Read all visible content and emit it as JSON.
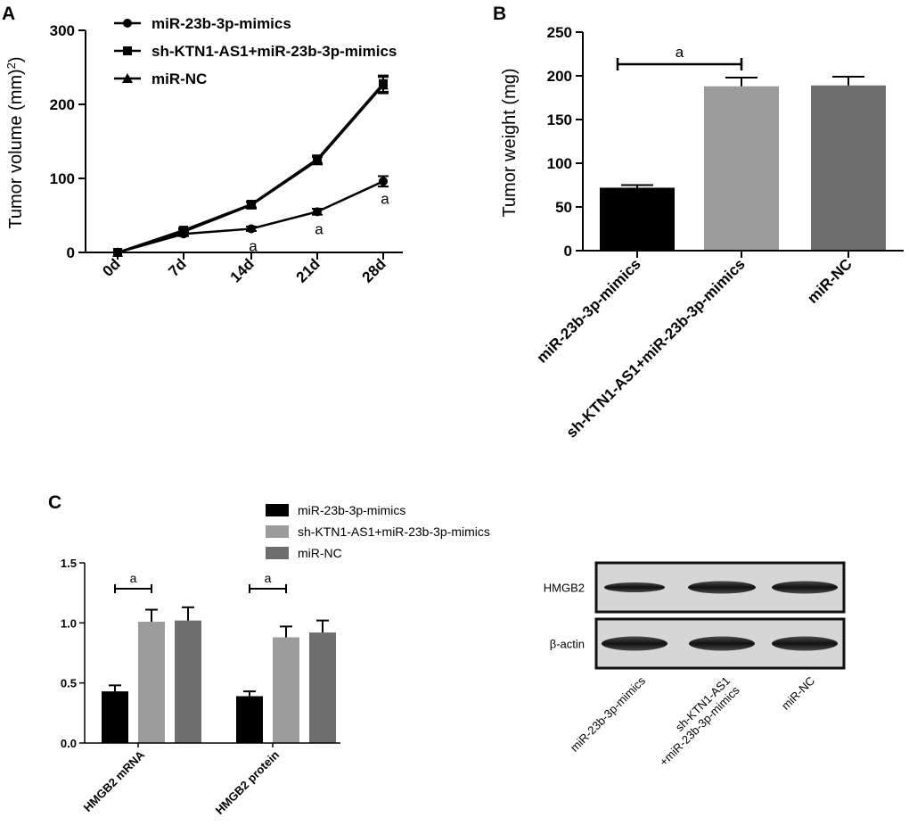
{
  "panels": {
    "A": "A",
    "B": "B",
    "C": "C"
  },
  "chart_data": [
    {
      "id": "A",
      "type": "line",
      "ylabel": "Tumor volume (mm²)",
      "xlabel": "",
      "categories": [
        "0d",
        "7d",
        "14d",
        "21d",
        "28d"
      ],
      "ylim": [
        0,
        300
      ],
      "yticks": [
        0,
        100,
        200,
        300
      ],
      "legend_position": "top-left",
      "series": [
        {
          "name": "miR-23b-3p-mimics",
          "marker": "circle",
          "values": [
            0,
            25,
            32,
            55,
            96
          ],
          "errors": [
            0,
            3,
            3,
            4,
            7
          ],
          "sig": [
            "",
            "",
            "a",
            "a",
            "a"
          ]
        },
        {
          "name": "sh-KTN1-AS1+miR-23b-3p-mimics",
          "marker": "square",
          "values": [
            0,
            30,
            65,
            126,
            228
          ],
          "errors": [
            0,
            3,
            4,
            5,
            11
          ],
          "sig": [
            "",
            "",
            "",
            "",
            ""
          ]
        },
        {
          "name": "miR-NC",
          "marker": "triangle",
          "values": [
            0,
            28,
            64,
            124,
            226
          ],
          "errors": [
            0,
            3,
            4,
            5,
            11
          ],
          "sig": [
            "",
            "",
            "",
            "",
            ""
          ]
        }
      ]
    },
    {
      "id": "B",
      "type": "bar",
      "ylabel": "Tumor weight (mg)",
      "xlabel": "",
      "categories": [
        "miR-23b-3p-mimics",
        "sh-KTN1-AS1+miR-23b-3p-mimics",
        "miR-NC"
      ],
      "values": [
        72,
        188,
        189
      ],
      "errors": [
        3,
        10,
        10
      ],
      "colors": [
        "#000000",
        "#9c9c9c",
        "#6e6e6e"
      ],
      "ylim": [
        0,
        250
      ],
      "yticks": [
        0,
        50,
        100,
        150,
        200,
        250
      ],
      "significance": {
        "from": 0,
        "to": 1,
        "label": "a"
      }
    },
    {
      "id": "C",
      "type": "bar",
      "ylabel": "",
      "xlabel": "",
      "categories": [
        "HMGB2 mRNA",
        "HMGB2 protein"
      ],
      "ylim": [
        0,
        1.5
      ],
      "yticks": [
        "0.0",
        "0.5",
        "1.0",
        "1.5"
      ],
      "legend_position": "top",
      "series": [
        {
          "name": "miR-23b-3p-mimics",
          "color": "#000000",
          "values": [
            0.43,
            0.39
          ],
          "errors": [
            0.05,
            0.04
          ]
        },
        {
          "name": "sh-KTN1-AS1+miR-23b-3p-mimics",
          "color": "#9c9c9c",
          "values": [
            1.01,
            0.88
          ],
          "errors": [
            0.1,
            0.09
          ]
        },
        {
          "name": "miR-NC",
          "color": "#6e6e6e",
          "values": [
            1.02,
            0.92
          ],
          "errors": [
            0.11,
            0.1
          ]
        }
      ],
      "significance": [
        {
          "category": 0,
          "from": 0,
          "to": 1,
          "label": "a"
        },
        {
          "category": 1,
          "from": 0,
          "to": 1,
          "label": "a"
        }
      ]
    }
  ],
  "blot": {
    "rows": [
      "HMGB2",
      "β-actin"
    ],
    "lanes": [
      "miR-23b-3p-mimics",
      "sh-KTN1-AS1\n+miR-23b-3p-mimics",
      "miR-NC"
    ]
  }
}
